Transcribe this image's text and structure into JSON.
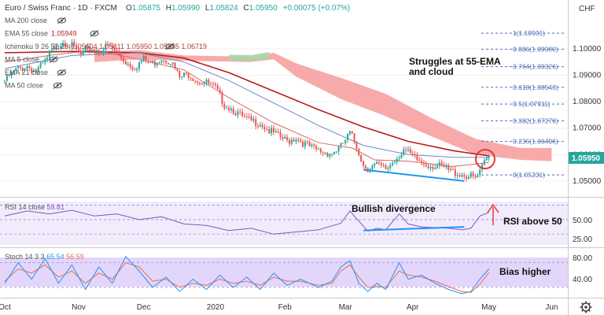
{
  "header": {
    "symbol": "Euro / Swiss Franc · 1D · FXCM",
    "ohlc": [
      {
        "k": "O",
        "v": "1.05875"
      },
      {
        "k": "H",
        "v": "1.05990"
      },
      {
        "k": "L",
        "v": "1.05824"
      },
      {
        "k": "C",
        "v": "1.05950"
      }
    ],
    "change": "+0.00075 (+0.07%)",
    "currency": "CHF"
  },
  "indicators": [
    {
      "label": "MA 200 close",
      "value": ""
    },
    {
      "label": "EMA 55 close",
      "value": "1.05949"
    },
    {
      "label": "Ichimoku 9 26 52 26",
      "value": "1.05604 1.05811 1.05950 1.05985 1.06719"
    },
    {
      "label": "MA 5 close",
      "value": ""
    },
    {
      "label": "EMA 21 close",
      "value": ""
    },
    {
      "label": "MA 50 close",
      "value": ""
    }
  ],
  "annotations": {
    "struggles": [
      "Struggles at 55-EMA",
      "and cloud"
    ],
    "bullish_divergence": "Bullish divergence",
    "rsi_above": "RSI above 50",
    "bias_higher": "Bias higher"
  },
  "fib_levels": [
    {
      "ratio": "1",
      "price": 1.10591
    },
    {
      "ratio": "0.886",
      "price": 1.0998
    },
    {
      "ratio": "0.764",
      "price": 1.09326
    },
    {
      "ratio": "0.618",
      "price": 1.08543
    },
    {
      "ratio": "0.5",
      "price": 1.07911
    },
    {
      "ratio": "0.382",
      "price": 1.07279
    },
    {
      "ratio": "0.236",
      "price": 1.06496
    },
    {
      "ratio": "0",
      "price": 1.05231
    }
  ],
  "price_axis": {
    "ticks": [
      "1.10000",
      "1.09000",
      "1.08000",
      "1.07000",
      "1.06000",
      "1.05000"
    ],
    "last_price": "1.05950"
  },
  "rsi": {
    "label": "RSI 14 close",
    "value": "59.81",
    "ticks": [
      "50.00",
      "25.00"
    ]
  },
  "stoch": {
    "label": "Stoch 14 3 3",
    "k": "65.54",
    "d": "56.59",
    "ticks": [
      "80.00",
      "40.00"
    ]
  },
  "time_axis": [
    "Oct",
    "Nov",
    "Dec",
    "2020",
    "Feb",
    "Mar",
    "Apr",
    "May",
    "Jun"
  ],
  "colors": {
    "up": "#26a69a",
    "down": "#ef5350",
    "ema55": "#b71c1c",
    "ema21": "#d66a6a",
    "ma50": "#6a89c8",
    "cloud_bear": "#f7a1a1",
    "cloud_bull": "#a8d5a8",
    "rsi_line": "#7e57c2",
    "stoch_k": "#2196f3",
    "stoch_d": "#ef6c47",
    "divergence": "#2196f3",
    "arrow": "#e53935",
    "fib": "#4a6fb5"
  },
  "chart_data": [
    {
      "type": "candlestick",
      "title": "Euro / Swiss Franc · 1D · FXCM",
      "x_labels": [
        "Oct",
        "Nov",
        "Dec",
        "2020",
        "Feb",
        "Mar",
        "Apr",
        "May",
        "Jun"
      ],
      "ylim": [
        1.047,
        1.111
      ],
      "close_path": [
        [
          0,
          1.088
        ],
        [
          5,
          1.092
        ],
        [
          10,
          1.0935
        ],
        [
          14,
          1.0915
        ],
        [
          18,
          1.095
        ],
        [
          22,
          1.1
        ],
        [
          26,
          1.103
        ],
        [
          30,
          1.101
        ],
        [
          34,
          1.0975
        ],
        [
          38,
          1.1
        ],
        [
          42,
          1.099
        ],
        [
          46,
          1.101
        ],
        [
          50,
          1.0985
        ],
        [
          54,
          1.095
        ],
        [
          58,
          1.093
        ],
        [
          62,
          1.096
        ],
        [
          66,
          1.0945
        ],
        [
          70,
          1.0965
        ],
        [
          74,
          1.0955
        ],
        [
          78,
          1.089
        ],
        [
          82,
          1.0905
        ],
        [
          86,
          1.088
        ],
        [
          90,
          1.087
        ],
        [
          94,
          1.085
        ],
        [
          98,
          1.079
        ],
        [
          102,
          1.077
        ],
        [
          106,
          1.074
        ],
        [
          110,
          1.0725
        ],
        [
          114,
          1.072
        ],
        [
          118,
          1.069
        ],
        [
          122,
          1.067
        ],
        [
          126,
          1.065
        ],
        [
          130,
          1.0665
        ],
        [
          134,
          1.064
        ],
        [
          138,
          1.062
        ],
        [
          142,
          1.061
        ],
        [
          146,
          1.0605
        ],
        [
          150,
          1.063
        ],
        [
          154,
          1.068
        ],
        [
          156,
          1.065
        ],
        [
          158,
          1.061
        ],
        [
          160,
          1.056
        ],
        [
          162,
          1.055
        ],
        [
          166,
          1.056
        ],
        [
          170,
          1.0545
        ],
        [
          174,
          1.058
        ],
        [
          178,
          1.062
        ],
        [
          182,
          1.059
        ],
        [
          186,
          1.057
        ],
        [
          190,
          1.056
        ],
        [
          194,
          1.0555
        ],
        [
          198,
          1.054
        ],
        [
          202,
          1.053
        ],
        [
          206,
          1.052
        ],
        [
          210,
          1.051
        ],
        [
          212,
          1.053
        ],
        [
          214,
          1.057
        ],
        [
          216,
          1.0595
        ]
      ],
      "series": [
        {
          "name": "EMA 55 close",
          "points": [
            [
              0,
              1.0985
            ],
            [
              30,
              1.099
            ],
            [
              60,
              1.0985
            ],
            [
              80,
              1.0965
            ],
            [
              100,
              1.091
            ],
            [
              120,
              1.084
            ],
            [
              140,
              1.077
            ],
            [
              160,
              1.0705
            ],
            [
              180,
              1.065
            ],
            [
              200,
              1.0615
            ],
            [
              216,
              1.0595
            ]
          ]
        },
        {
          "name": "EMA 21 close",
          "points": [
            [
              0,
              1.095
            ],
            [
              20,
              1.0975
            ],
            [
              40,
              1.0995
            ],
            [
              60,
              1.096
            ],
            [
              80,
              1.092
            ],
            [
              100,
              1.0815
            ],
            [
              120,
              1.072
            ],
            [
              140,
              1.0645
            ],
            [
              155,
              1.0625
            ],
            [
              165,
              1.058
            ],
            [
              180,
              1.0575
            ],
            [
              200,
              1.0555
            ],
            [
              216,
              1.057
            ]
          ]
        },
        {
          "name": "MA 50 close",
          "points": [
            [
              0,
              1.0925
            ],
            [
              30,
              1.0975
            ],
            [
              60,
              1.0985
            ],
            [
              80,
              1.095
            ],
            [
              100,
              1.088
            ],
            [
              120,
              1.0795
            ],
            [
              140,
              1.071
            ],
            [
              160,
              1.0635
            ],
            [
              180,
              1.06
            ],
            [
              200,
              1.059
            ],
            [
              216,
              1.059
            ]
          ]
        }
      ],
      "ichimoku_cloud": {
        "upper": [
          [
            40,
            1.099
          ],
          [
            60,
            1.0995
          ],
          [
            80,
            1.0975
          ],
          [
            110,
            1.097
          ],
          [
            120,
            1.0985
          ],
          [
            130,
            1.0945
          ],
          [
            150,
            1.089
          ],
          [
            170,
            1.083
          ],
          [
            190,
            1.074
          ],
          [
            210,
            1.066
          ],
          [
            230,
            1.0625
          ],
          [
            244,
            1.0625
          ]
        ],
        "lower": [
          [
            40,
            1.095
          ],
          [
            60,
            1.096
          ],
          [
            80,
            1.0955
          ],
          [
            110,
            1.095
          ],
          [
            120,
            1.096
          ],
          [
            130,
            1.0895
          ],
          [
            150,
            1.081
          ],
          [
            170,
            1.0745
          ],
          [
            190,
            1.067
          ],
          [
            210,
            1.06
          ],
          [
            230,
            1.058
          ],
          [
            244,
            1.0575
          ]
        ],
        "bull_range": [
          100,
          118
        ]
      },
      "divergence_line": [
        [
          160,
          1.0543
        ],
        [
          205,
          1.05
        ]
      ]
    },
    {
      "type": "line",
      "title": "RSI 14 close",
      "ylim": [
        15,
        75
      ],
      "series": [
        {
          "name": "RSI 14 close",
          "points": [
            [
              0,
              55
            ],
            [
              10,
              62
            ],
            [
              20,
              58
            ],
            [
              30,
              63
            ],
            [
              40,
              55
            ],
            [
              50,
              58
            ],
            [
              60,
              50
            ],
            [
              70,
              54
            ],
            [
              80,
              44
            ],
            [
              90,
              42
            ],
            [
              100,
              35
            ],
            [
              110,
              38
            ],
            [
              120,
              30
            ],
            [
              130,
              33
            ],
            [
              140,
              36
            ],
            [
              150,
              45
            ],
            [
              154,
              62
            ],
            [
              158,
              48
            ],
            [
              162,
              34
            ],
            [
              166,
              38
            ],
            [
              170,
              36
            ],
            [
              176,
              58
            ],
            [
              180,
              44
            ],
            [
              186,
              40
            ],
            [
              192,
              39
            ],
            [
              198,
              38
            ],
            [
              204,
              36
            ],
            [
              208,
              38
            ],
            [
              212,
              55
            ],
            [
              216,
              60
            ]
          ]
        }
      ],
      "divergence_line": [
        [
          160,
          35
        ],
        [
          205,
          40
        ]
      ],
      "levels": [
        30,
        50,
        70
      ]
    },
    {
      "type": "line",
      "title": "Stoch 14 3 3",
      "ylim": [
        -5,
        110
      ],
      "series": [
        {
          "name": "Stoch K",
          "points": [
            [
              0,
              30
            ],
            [
              6,
              80
            ],
            [
              12,
              40
            ],
            [
              18,
              90
            ],
            [
              24,
              30
            ],
            [
              30,
              75
            ],
            [
              36,
              15
            ],
            [
              42,
              70
            ],
            [
              48,
              30
            ],
            [
              54,
              95
            ],
            [
              60,
              60
            ],
            [
              66,
              20
            ],
            [
              72,
              45
            ],
            [
              78,
              10
            ],
            [
              84,
              40
            ],
            [
              90,
              15
            ],
            [
              96,
              50
            ],
            [
              102,
              20
            ],
            [
              108,
              45
            ],
            [
              114,
              15
            ],
            [
              120,
              55
            ],
            [
              126,
              25
            ],
            [
              132,
              40
            ],
            [
              140,
              20
            ],
            [
              146,
              35
            ],
            [
              150,
              70
            ],
            [
              154,
              85
            ],
            [
              158,
              30
            ],
            [
              162,
              10
            ],
            [
              166,
              30
            ],
            [
              170,
              15
            ],
            [
              176,
              80
            ],
            [
              180,
              40
            ],
            [
              186,
              50
            ],
            [
              192,
              30
            ],
            [
              198,
              15
            ],
            [
              204,
              5
            ],
            [
              208,
              10
            ],
            [
              212,
              40
            ],
            [
              216,
              65
            ]
          ]
        },
        {
          "name": "Stoch D",
          "points": [
            [
              0,
              35
            ],
            [
              6,
              65
            ],
            [
              12,
              55
            ],
            [
              18,
              75
            ],
            [
              24,
              45
            ],
            [
              30,
              60
            ],
            [
              36,
              30
            ],
            [
              42,
              55
            ],
            [
              48,
              40
            ],
            [
              54,
              80
            ],
            [
              60,
              70
            ],
            [
              66,
              35
            ],
            [
              72,
              40
            ],
            [
              78,
              20
            ],
            [
              84,
              30
            ],
            [
              90,
              25
            ],
            [
              96,
              40
            ],
            [
              102,
              30
            ],
            [
              108,
              35
            ],
            [
              114,
              25
            ],
            [
              120,
              45
            ],
            [
              126,
              35
            ],
            [
              132,
              35
            ],
            [
              140,
              25
            ],
            [
              146,
              30
            ],
            [
              150,
              60
            ],
            [
              154,
              75
            ],
            [
              158,
              45
            ],
            [
              162,
              20
            ],
            [
              166,
              22
            ],
            [
              170,
              20
            ],
            [
              176,
              60
            ],
            [
              180,
              50
            ],
            [
              186,
              45
            ],
            [
              192,
              35
            ],
            [
              198,
              22
            ],
            [
              204,
              10
            ],
            [
              208,
              8
            ],
            [
              212,
              28
            ],
            [
              216,
              56
            ]
          ]
        }
      ],
      "levels": [
        20,
        80
      ]
    }
  ]
}
